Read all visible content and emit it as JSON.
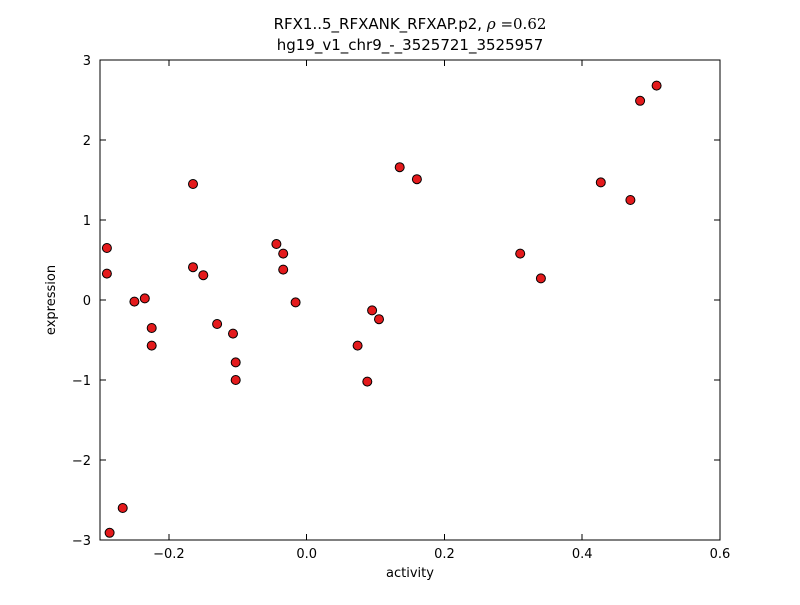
{
  "chart_data": {
    "type": "scatter",
    "title_prefix": "RFX1..5_RFXANK_RFXAP.p2, ",
    "title_rho": "ρ",
    "title_value": " =0.62",
    "subtitle": "hg19_v1_chr9_-_3525721_3525957",
    "xlabel": "activity",
    "ylabel": "expression",
    "xlim": [
      -0.3,
      0.6
    ],
    "ylim": [
      -3,
      3
    ],
    "xticks": [
      -0.2,
      0.0,
      0.2,
      0.4,
      0.6
    ],
    "xtick_labels": [
      "−0.2",
      "0.0",
      "0.2",
      "0.4",
      "0.6"
    ],
    "yticks": [
      -3,
      -2,
      -1,
      0,
      1,
      2,
      3
    ],
    "ytick_labels": [
      "−3",
      "−2",
      "−1",
      "0",
      "1",
      "2",
      "3"
    ],
    "grid": false,
    "legend": "none",
    "marker": {
      "shape": "circle",
      "fill": "#e41a1c",
      "edge": "#000000",
      "radius": 4.5
    },
    "points": [
      [
        -0.29,
        0.65
      ],
      [
        -0.29,
        0.33
      ],
      [
        -0.286,
        -2.91
      ],
      [
        -0.267,
        -2.6
      ],
      [
        -0.25,
        -0.02
      ],
      [
        -0.235,
        0.02
      ],
      [
        -0.225,
        -0.35
      ],
      [
        -0.225,
        -0.57
      ],
      [
        -0.165,
        1.45
      ],
      [
        -0.165,
        0.41
      ],
      [
        -0.15,
        0.31
      ],
      [
        -0.13,
        -0.3
      ],
      [
        -0.107,
        -0.42
      ],
      [
        -0.103,
        -0.78
      ],
      [
        -0.103,
        -1.0
      ],
      [
        -0.044,
        0.7
      ],
      [
        -0.034,
        0.58
      ],
      [
        -0.034,
        0.38
      ],
      [
        -0.016,
        -0.03
      ],
      [
        0.074,
        -0.57
      ],
      [
        0.088,
        -1.02
      ],
      [
        0.095,
        -0.13
      ],
      [
        0.105,
        -0.24
      ],
      [
        0.135,
        1.66
      ],
      [
        0.16,
        1.51
      ],
      [
        0.31,
        0.58
      ],
      [
        0.34,
        0.27
      ],
      [
        0.427,
        1.47
      ],
      [
        0.47,
        1.25
      ],
      [
        0.484,
        2.49
      ],
      [
        0.508,
        2.68
      ]
    ]
  }
}
